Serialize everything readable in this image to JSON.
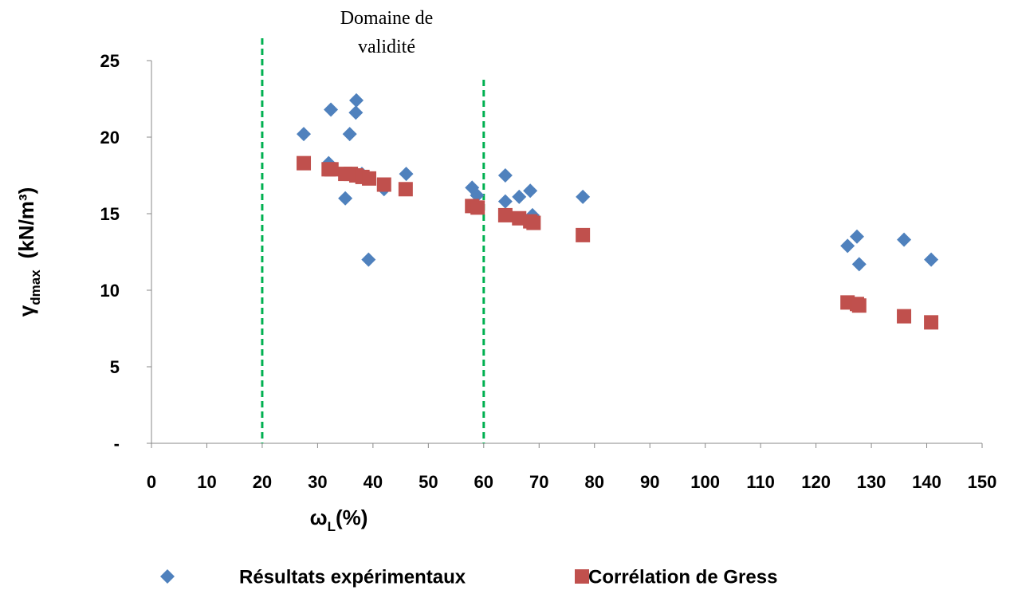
{
  "chart_data": {
    "type": "scatter",
    "xlabel": {
      "symbol": "ω",
      "subscript": "L",
      "unit": "(%)"
    },
    "ylabel": {
      "symbol": "γ",
      "subscript": "dmax",
      "unit": "(kN/m³)"
    },
    "annotation": [
      "Domaine de",
      "validité"
    ],
    "vlines": [
      20,
      60
    ],
    "vline_color": "#00b050",
    "xlim": [
      0,
      150
    ],
    "xticks": [
      0,
      10,
      20,
      30,
      40,
      50,
      60,
      70,
      80,
      90,
      100,
      110,
      120,
      130,
      140,
      150
    ],
    "ylim": [
      0,
      25
    ],
    "yticks": [
      {
        "value": 0,
        "label": "-"
      },
      5,
      10,
      15,
      20,
      25
    ],
    "legend": "bottom",
    "series": [
      {
        "name": "Résultats expérimentaux",
        "color": "#4f81bd",
        "marker": "diamond",
        "x": [
          27.5,
          32,
          32.4,
          37,
          36.9,
          35.8,
          35,
          38,
          39.2,
          42,
          46,
          57.9,
          58.8,
          63.9,
          63.9,
          66.4,
          68.4,
          68.8,
          77.9,
          125.7,
          127.4,
          127.8,
          135.9,
          140.8
        ],
        "values": [
          20.2,
          18.3,
          21.8,
          22.4,
          21.6,
          20.2,
          16.0,
          17.6,
          12.0,
          16.6,
          17.6,
          16.7,
          16.2,
          17.5,
          15.8,
          16.1,
          16.5,
          14.9,
          16.1,
          12.9,
          13.5,
          11.7,
          13.3,
          12.0
        ]
      },
      {
        "name": "Corrélation de Gress",
        "color": "#c0504d",
        "marker": "square",
        "x": [
          27.5,
          32,
          32.5,
          35,
          36,
          37,
          38.1,
          39.3,
          42,
          45.9,
          57.9,
          58.9,
          63.9,
          66.4,
          68.4,
          69,
          77.9,
          125.7,
          127.4,
          127.8,
          135.9,
          140.8
        ],
        "values": [
          18.3,
          17.9,
          17.9,
          17.6,
          17.6,
          17.5,
          17.4,
          17.3,
          16.9,
          16.6,
          15.5,
          15.4,
          14.9,
          14.7,
          14.5,
          14.4,
          13.6,
          9.2,
          9.1,
          9.0,
          8.3,
          7.9
        ]
      }
    ]
  }
}
